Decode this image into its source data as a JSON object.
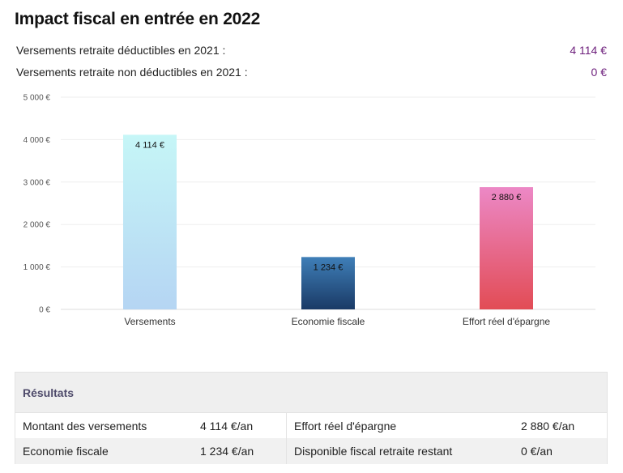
{
  "title": "Impact fiscal en entrée en 2022",
  "summary": [
    {
      "label": "Versements retraite déductibles en 2021 :",
      "value": "4 114 €"
    },
    {
      "label": "Versements retraite non déductibles en 2021 :",
      "value": "0 €"
    }
  ],
  "chart_data": {
    "type": "bar",
    "categories": [
      "Versements",
      "Economie fiscale",
      "Effort réel d'épargne"
    ],
    "values": [
      4114,
      1234,
      2880
    ],
    "value_labels": [
      "4 114 €",
      "1 234 €",
      "2 880 €"
    ],
    "ylim": [
      0,
      5000
    ],
    "yticks": [
      0,
      1000,
      2000,
      3000,
      4000,
      5000
    ],
    "ytick_labels": [
      "0 €",
      "1 000 €",
      "2 000 €",
      "3 000 €",
      "4 000 €",
      "5 000 €"
    ],
    "grid": true,
    "colors": [
      {
        "top": "#c6f6f7",
        "bottom": "#b5d5f3"
      },
      {
        "top": "#3f7fb8",
        "bottom": "#1a3a66"
      },
      {
        "top": "#ec88c6",
        "bottom": "#e24c55"
      }
    ]
  },
  "results": {
    "header": "Résultats",
    "rows": [
      {
        "l1": "Montant des versements",
        "v1": "4 114 €/an",
        "l2": "Effort réel d'épargne",
        "v2": "2 880 €/an"
      },
      {
        "l1": "Economie fiscale",
        "v1": "1 234 €/an",
        "l2": "Disponible fiscal retraite restant",
        "v2": "0 €/an"
      }
    ]
  }
}
